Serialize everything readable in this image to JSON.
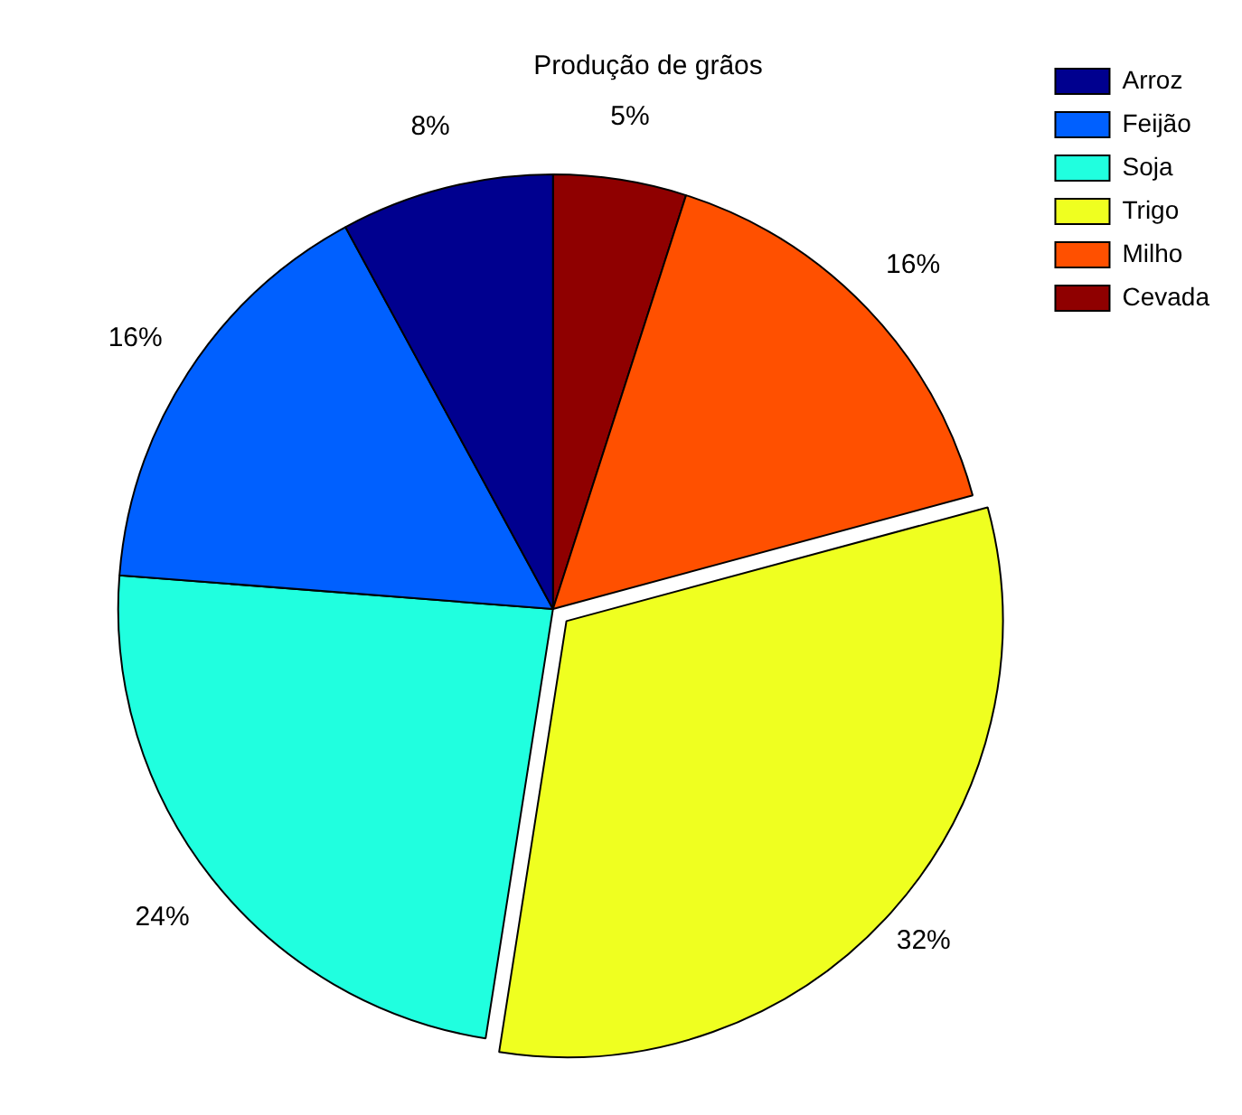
{
  "chart_data": {
    "type": "pie",
    "title": "Produção de grãos",
    "categories": [
      "Arroz",
      "Feijão",
      "Soja",
      "Trigo",
      "Milho",
      "Cevada"
    ],
    "values": [
      8,
      16,
      24,
      32,
      16,
      5
    ],
    "value_labels": [
      "8%",
      "16%",
      "24%",
      "32%",
      "16%",
      "5%"
    ],
    "colors": [
      "#00008f",
      "#0060ff",
      "#20ffdf",
      "#efff20",
      "#ff5000",
      "#8f0000"
    ],
    "legend": "top right"
  }
}
